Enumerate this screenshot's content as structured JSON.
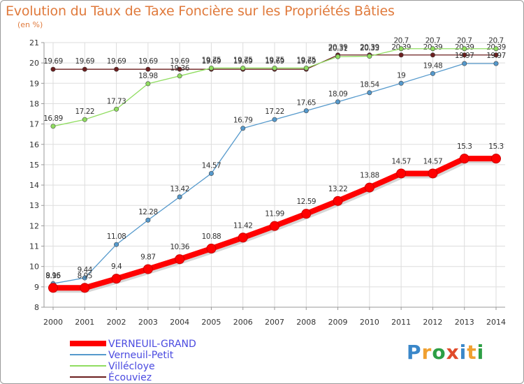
{
  "title": "Evolution du Taux de Taxe Foncière sur les Propriétés Bâties",
  "unit_label": "(en %)",
  "logo": {
    "parts": [
      "P",
      "r",
      "o",
      "x",
      "i",
      "t",
      "i"
    ],
    "colors": [
      "#3a87c9",
      "#f0a030",
      "#2d9f45",
      "#e04a2a",
      "#3a87c9",
      "#f0a030",
      "#2d9f45"
    ]
  },
  "colors": {
    "title": "#e07a3c",
    "axis_text": "#333333",
    "grid": "#dddddd",
    "legend_text": "#4a4ae0"
  },
  "chart_data": {
    "type": "line",
    "title": "Evolution du Taux de Taxe Foncière sur les Propriétés Bâties",
    "ylabel": "(en %)",
    "xlabel": "",
    "ylim": [
      8,
      21
    ],
    "yticks": [
      "8",
      "9",
      "10",
      "11",
      "12",
      "13",
      "14",
      "15",
      "16",
      "17",
      "18",
      "19",
      "20",
      "21"
    ],
    "categories": [
      "2000",
      "2001",
      "2002",
      "2003",
      "2004",
      "2005",
      "2006",
      "2007",
      "2008",
      "2009",
      "2010",
      "2011",
      "2012",
      "2013",
      "2014"
    ],
    "series": [
      {
        "name": "Écouviez",
        "color": "#6b1e1e",
        "values": [
          19.69,
          19.69,
          19.69,
          19.69,
          19.69,
          19.69,
          19.69,
          19.69,
          19.69,
          20.39,
          20.39,
          20.39,
          20.39,
          20.39,
          20.39
        ],
        "labels": [
          "19.69",
          "19.69",
          "19.69",
          "19.69",
          "19.69",
          "19.69",
          "19.69",
          "19.69",
          "19.69",
          "20.39",
          "20.39",
          "20.39",
          "20.39",
          "20.39",
          "20.39"
        ]
      },
      {
        "name": "Villécloye",
        "color": "#90dd60",
        "values": [
          16.89,
          17.22,
          17.73,
          18.98,
          19.36,
          19.75,
          19.75,
          19.75,
          19.75,
          20.31,
          20.33,
          20.7,
          20.7,
          20.7,
          20.7
        ],
        "labels": [
          "16.89",
          "17.22",
          "17.73",
          "18.98",
          "19.36",
          "19.75",
          "19.75",
          "19.75",
          "19.75",
          "20.31",
          "20.33",
          "20.7",
          "20.7",
          "20.7",
          "20.7"
        ]
      },
      {
        "name": "Verneuil-Petit",
        "color": "#5599cc",
        "values": [
          9.16,
          9.44,
          11.08,
          12.28,
          13.42,
          14.57,
          16.79,
          17.22,
          17.65,
          18.09,
          18.54,
          19,
          19.48,
          19.97,
          19.97
        ],
        "labels": [
          "9.16",
          "9.44",
          "11.08",
          "12.28",
          "13.42",
          "14.57",
          "16.79",
          "17.22",
          "17.65",
          "18.09",
          "18.54",
          "19",
          "19.48",
          "19.97",
          "19.97"
        ]
      },
      {
        "name": "VERNEUIL-GRAND",
        "color": "#ff0000",
        "values": [
          8.95,
          8.95,
          9.4,
          9.87,
          10.36,
          10.88,
          11.42,
          11.99,
          12.59,
          13.22,
          13.88,
          14.57,
          14.57,
          15.3,
          15.3
        ],
        "labels": [
          "8.95",
          "8.95",
          "9.4",
          "9.87",
          "10.36",
          "10.88",
          "11.42",
          "11.99",
          "12.59",
          "13.22",
          "13.88",
          "14.57",
          "14.57",
          "15.3",
          "15.3"
        ]
      }
    ],
    "legend": [
      "VERNEUIL-GRAND",
      "Verneuil-Petit",
      "Villécloye",
      "Écouviez"
    ],
    "legend_position": "bottom-left",
    "grid": true
  }
}
